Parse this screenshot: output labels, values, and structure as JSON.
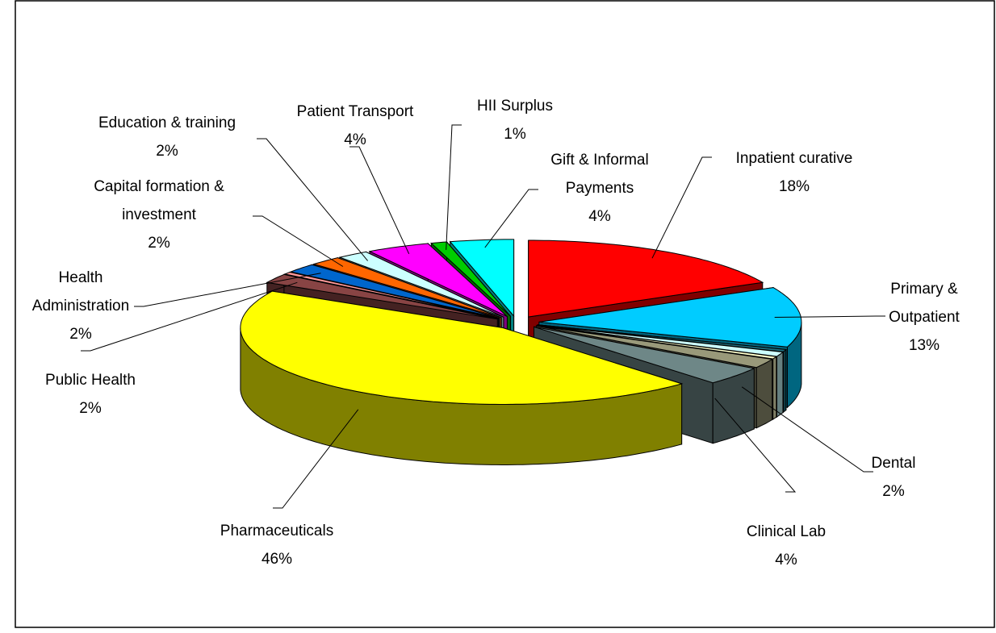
{
  "chart_data": {
    "type": "pie3d",
    "categories": [
      "Inpatient curative",
      "Primary & Outpatient",
      null,
      null,
      null,
      "Dental",
      "Clinical Lab",
      "Pharmaceuticals",
      "Public Health",
      null,
      "Health Administration",
      "Capital formation & investment",
      "Education & training",
      "Patient Transport",
      "HII Surplus",
      "Gift & Informal Payments"
    ],
    "values": [
      18,
      13,
      0.5,
      1,
      0.5,
      2,
      4,
      46,
      2,
      0.5,
      2,
      2,
      2,
      4,
      1,
      4
    ],
    "value_labels": [
      "18%",
      "13%",
      null,
      null,
      null,
      "2%",
      "4%",
      "46%",
      "2%",
      null,
      "2%",
      "2%",
      "2%",
      "4%",
      "1%",
      "4%"
    ],
    "colors": [
      "#ff0000",
      "#00ccff",
      "#1f6f7f",
      "#ccffff",
      "#ffffcc",
      "#99997a",
      "#6e8787",
      "#ffff00",
      "#884444",
      "#ff9999",
      "#0066cc",
      "#ff6600",
      "#ccffff",
      "#ff00ff",
      "#00cc00",
      "#00ffff"
    ]
  }
}
